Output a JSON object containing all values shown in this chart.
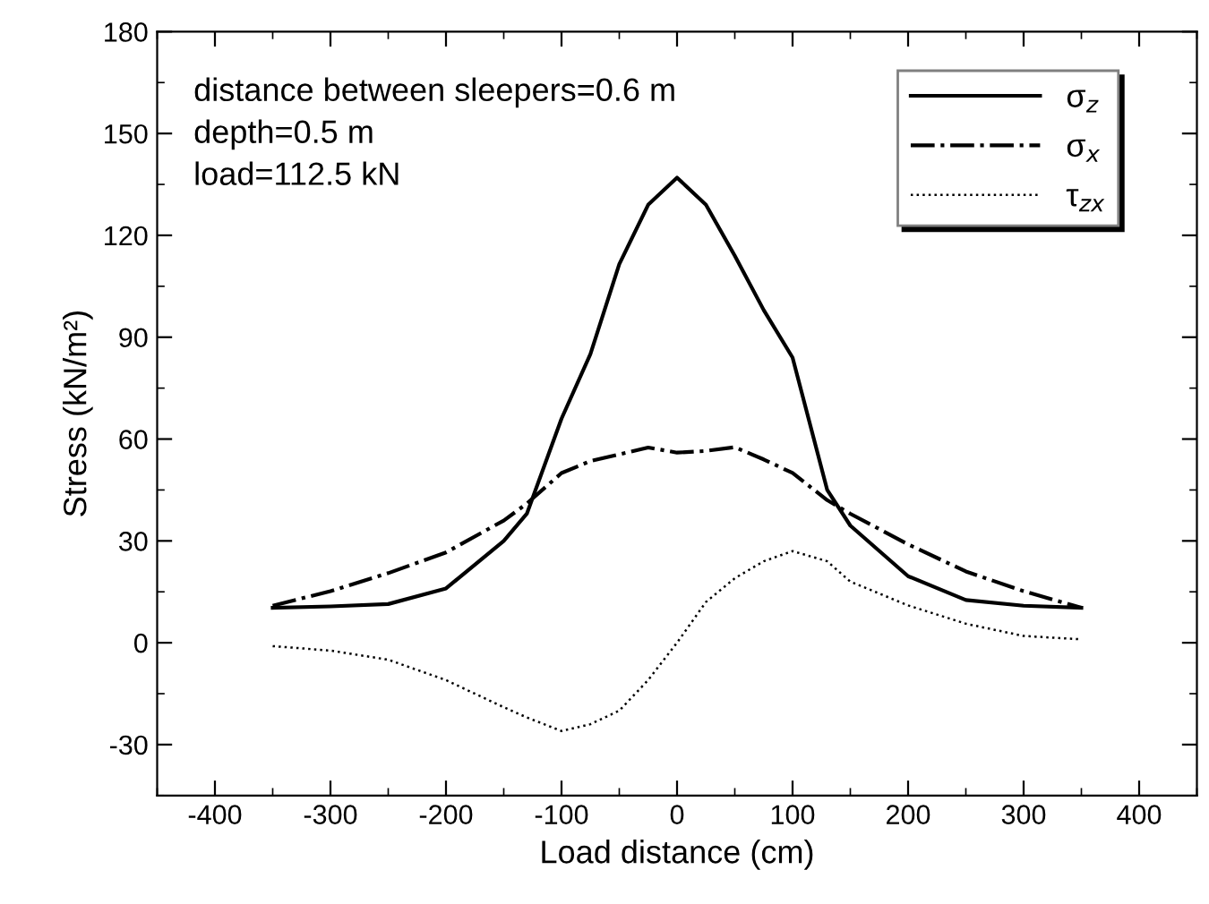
{
  "chart_data": {
    "type": "line",
    "xlabel": "Load distance (cm)",
    "ylabel": "Stress (kN/m²)",
    "xlim": [
      -450,
      450
    ],
    "xticks": [
      -400,
      -300,
      -200,
      -100,
      0,
      100,
      200,
      300,
      400
    ],
    "ylim": [
      -45,
      180
    ],
    "yticks": [
      -30,
      0,
      30,
      60,
      90,
      120,
      150,
      180
    ],
    "grid": false,
    "legend": "top right",
    "marker": "none",
    "annotations": [
      "distance between sleepers=0.6 m",
      "depth=0.5 m",
      "load=112.5 kN"
    ],
    "x": [
      -350,
      -300,
      -250,
      -200,
      -150,
      -130,
      -100,
      -75,
      -50,
      -25,
      0,
      25,
      50,
      75,
      100,
      130,
      150,
      200,
      250,
      300,
      350
    ],
    "series": [
      {
        "name": "σ$_{z}$",
        "color": "#000000",
        "line_style": "solid",
        "values": [
          10.3,
          10.7,
          11.4,
          16,
          30,
          38,
          66,
          85,
          111.5,
          129,
          137,
          129,
          114,
          98,
          84,
          45,
          34.5,
          19.6,
          12.6,
          10.9,
          10.3
        ]
      },
      {
        "name": "σ$_{x}$",
        "color": "#000000",
        "line_style": "dashdot",
        "values": [
          10.9,
          15.2,
          20.5,
          26.6,
          36,
          41,
          50,
          53.5,
          55.5,
          57.5,
          56,
          56.5,
          57.6,
          54,
          50,
          42,
          38,
          29,
          21,
          15.2,
          10.3
        ]
      },
      {
        "name": "τ$_{zx}$",
        "color": "#000000",
        "line_style": "dotted",
        "values": [
          -1,
          -2.3,
          -5,
          -11,
          -19,
          -22,
          -26,
          -24,
          -20,
          -11,
          0,
          12,
          19,
          24,
          27,
          24,
          18,
          11,
          5.6,
          2,
          1
        ]
      }
    ]
  }
}
